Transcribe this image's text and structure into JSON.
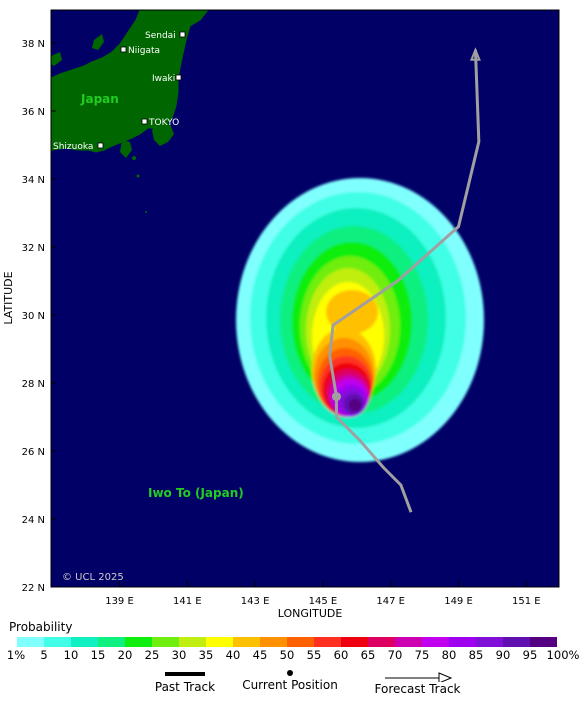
{
  "map": {
    "x_ticks": [
      "139 E",
      "141 E",
      "143 E",
      "145 E",
      "147 E",
      "149 E",
      "151 E"
    ],
    "y_ticks": [
      "22 N",
      "24 N",
      "26 N",
      "28 N",
      "30 N",
      "32 N",
      "34 N",
      "36 N",
      "38 N"
    ],
    "x_title": "LONGITUDE",
    "y_title": "LATITUDE",
    "copyright": "© UCL 2025",
    "places": [
      "Sendai",
      "Niigata",
      "Iwaki",
      "TOKYO",
      "Shizuoka"
    ],
    "region_labels": [
      "Japan",
      "Iwo To (Japan)"
    ],
    "colors": {
      "ocean": "#000066",
      "land": "#006600",
      "region_label": "#22cc22",
      "track": "#a0a0a0"
    },
    "forecast_track": [
      {
        "lat": 24.2,
        "lon": 147.6
      },
      {
        "lat": 25.0,
        "lon": 147.3
      },
      {
        "lat": 25.5,
        "lon": 146.8
      },
      {
        "lat": 26.3,
        "lon": 146.1
      },
      {
        "lat": 27.0,
        "lon": 145.4
      },
      {
        "lat": 27.6,
        "lon": 145.4
      },
      {
        "lat": 28.8,
        "lon": 145.2
      },
      {
        "lat": 29.7,
        "lon": 145.3
      },
      {
        "lat": 31.0,
        "lon": 147.2
      },
      {
        "lat": 32.6,
        "lon": 149.0
      },
      {
        "lat": 35.1,
        "lon": 149.6
      },
      {
        "lat": 37.8,
        "lon": 149.5
      }
    ],
    "current_position": {
      "lat": 27.6,
      "lon": 145.4
    }
  },
  "legend": {
    "title": "Probability",
    "tick_labels": [
      "1%",
      "5",
      "10",
      "15",
      "20",
      "25",
      "30",
      "35",
      "40",
      "45",
      "50",
      "55",
      "60",
      "65",
      "70",
      "75",
      "80",
      "85",
      "90",
      "95",
      "100%"
    ],
    "colors": [
      "#80ffff",
      "#40ffe6",
      "#10f0c0",
      "#10f080",
      "#10ee10",
      "#70ee10",
      "#c0ee10",
      "#ffff00",
      "#ffc000",
      "#ff9000",
      "#ff6000",
      "#ff3020",
      "#ee0010",
      "#dd0060",
      "#cc00b0",
      "#c000ee",
      "#a000f0",
      "#8010d8",
      "#6010b0",
      "#550080"
    ],
    "past_track_label": "Past Track",
    "current_position_label": "Current Position",
    "forecast_track_label": "Forecast Track"
  }
}
